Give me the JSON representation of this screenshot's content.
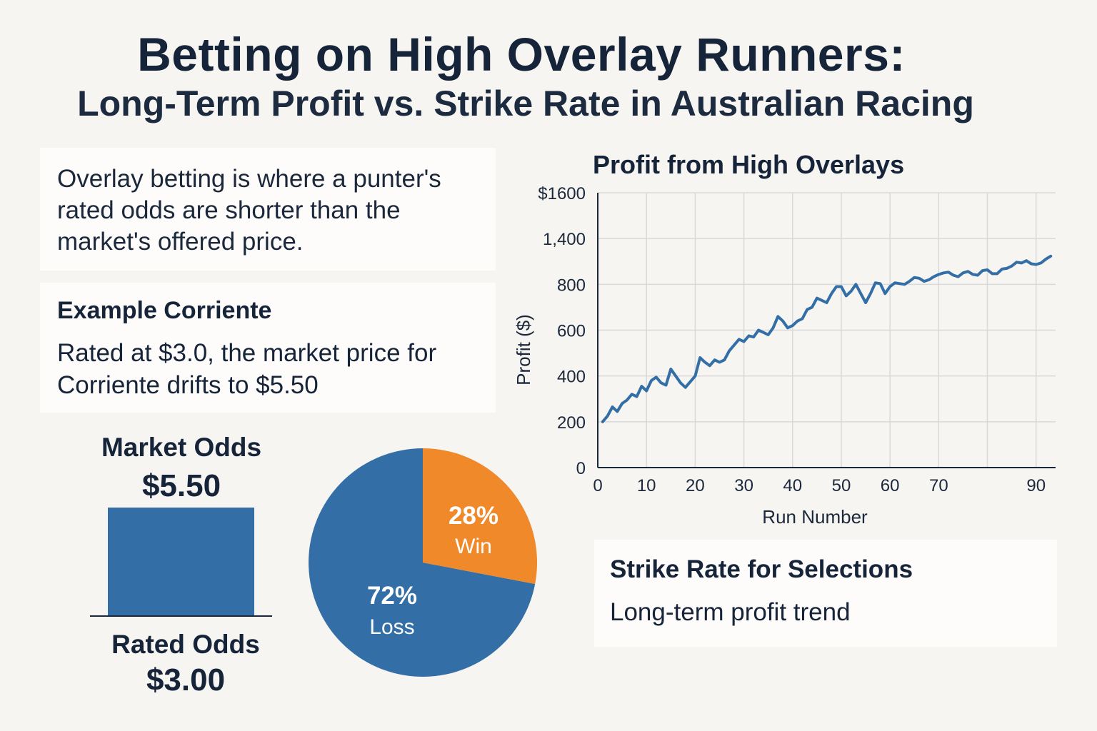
{
  "title": "Betting on High Overlay Runners:",
  "subtitle": "Long-Term Profit vs. Strike Rate in Australian Racing",
  "definition": "Overlay betting is where a punter's rated odds are shorter than the market's offered price.",
  "example": {
    "heading": "Example Corriente",
    "text": "Rated at $3.0, the market price for Corriente drifts to $5.50"
  },
  "odds": {
    "market_label": "Market Odds",
    "market_value": "$5.50",
    "rated_label": "Rated Odds",
    "rated_value": "$3.00"
  },
  "strike_card": {
    "heading": "Strike Rate for Selections",
    "text": "Long-term profit trend"
  },
  "colors": {
    "line": "#336fa6",
    "win": "#f0892a",
    "loss": "#336fa6",
    "grid": "#d9d9d9"
  },
  "chart_data": [
    {
      "type": "line",
      "title": "Profit from High Overlays",
      "xlabel": "Run Number",
      "ylabel": "Profit ($)",
      "xlim": [
        0,
        94
      ],
      "x_ticks": [
        0,
        10,
        20,
        30,
        40,
        50,
        60,
        70,
        90
      ],
      "y_tick_labels": [
        "0",
        "200",
        "400",
        "600",
        "800",
        "1,400",
        "$1600"
      ],
      "grid": true,
      "series": [
        {
          "name": "Profit",
          "x": [
            1,
            2,
            3,
            4,
            5,
            6,
            7,
            8,
            9,
            10,
            11,
            12,
            13,
            14,
            15,
            16,
            17,
            18,
            19,
            20,
            21,
            22,
            23,
            24,
            25,
            26,
            27,
            28,
            29,
            30,
            31,
            32,
            33,
            34,
            35,
            36,
            37,
            38,
            39,
            40,
            41,
            42,
            43,
            44,
            45,
            46,
            47,
            48,
            49,
            50,
            51,
            52,
            53,
            54,
            55,
            56,
            57,
            58,
            59,
            60,
            61,
            62,
            63,
            64,
            65,
            66,
            67,
            68,
            69,
            70,
            71,
            72,
            73,
            74,
            75,
            76,
            77,
            78,
            79,
            80,
            81,
            82,
            83,
            84,
            85,
            86,
            87,
            88,
            89,
            90,
            91,
            92,
            93
          ],
          "values": [
            200,
            225,
            265,
            245,
            280,
            295,
            320,
            310,
            355,
            335,
            380,
            395,
            370,
            360,
            430,
            400,
            370,
            350,
            375,
            400,
            480,
            460,
            445,
            470,
            460,
            470,
            510,
            535,
            560,
            550,
            575,
            570,
            600,
            590,
            580,
            610,
            660,
            640,
            610,
            620,
            640,
            650,
            690,
            700,
            740,
            730,
            720,
            760,
            790,
            790,
            750,
            770,
            800,
            760,
            720,
            760,
            820,
            810,
            760,
            790,
            820,
            810,
            800,
            840,
            890,
            880,
            840,
            860,
            900,
            930,
            950,
            960,
            920,
            900,
            950,
            970,
            930,
            920,
            980,
            990,
            940,
            940,
            1000,
            1010,
            1040,
            1090,
            1080,
            1110,
            1070,
            1060,
            1080,
            1130,
            1170
          ]
        }
      ]
    },
    {
      "type": "pie",
      "labels": [
        "Win",
        "Loss"
      ],
      "values": [
        28,
        72
      ],
      "value_labels": [
        "28%",
        "72%"
      ]
    }
  ]
}
